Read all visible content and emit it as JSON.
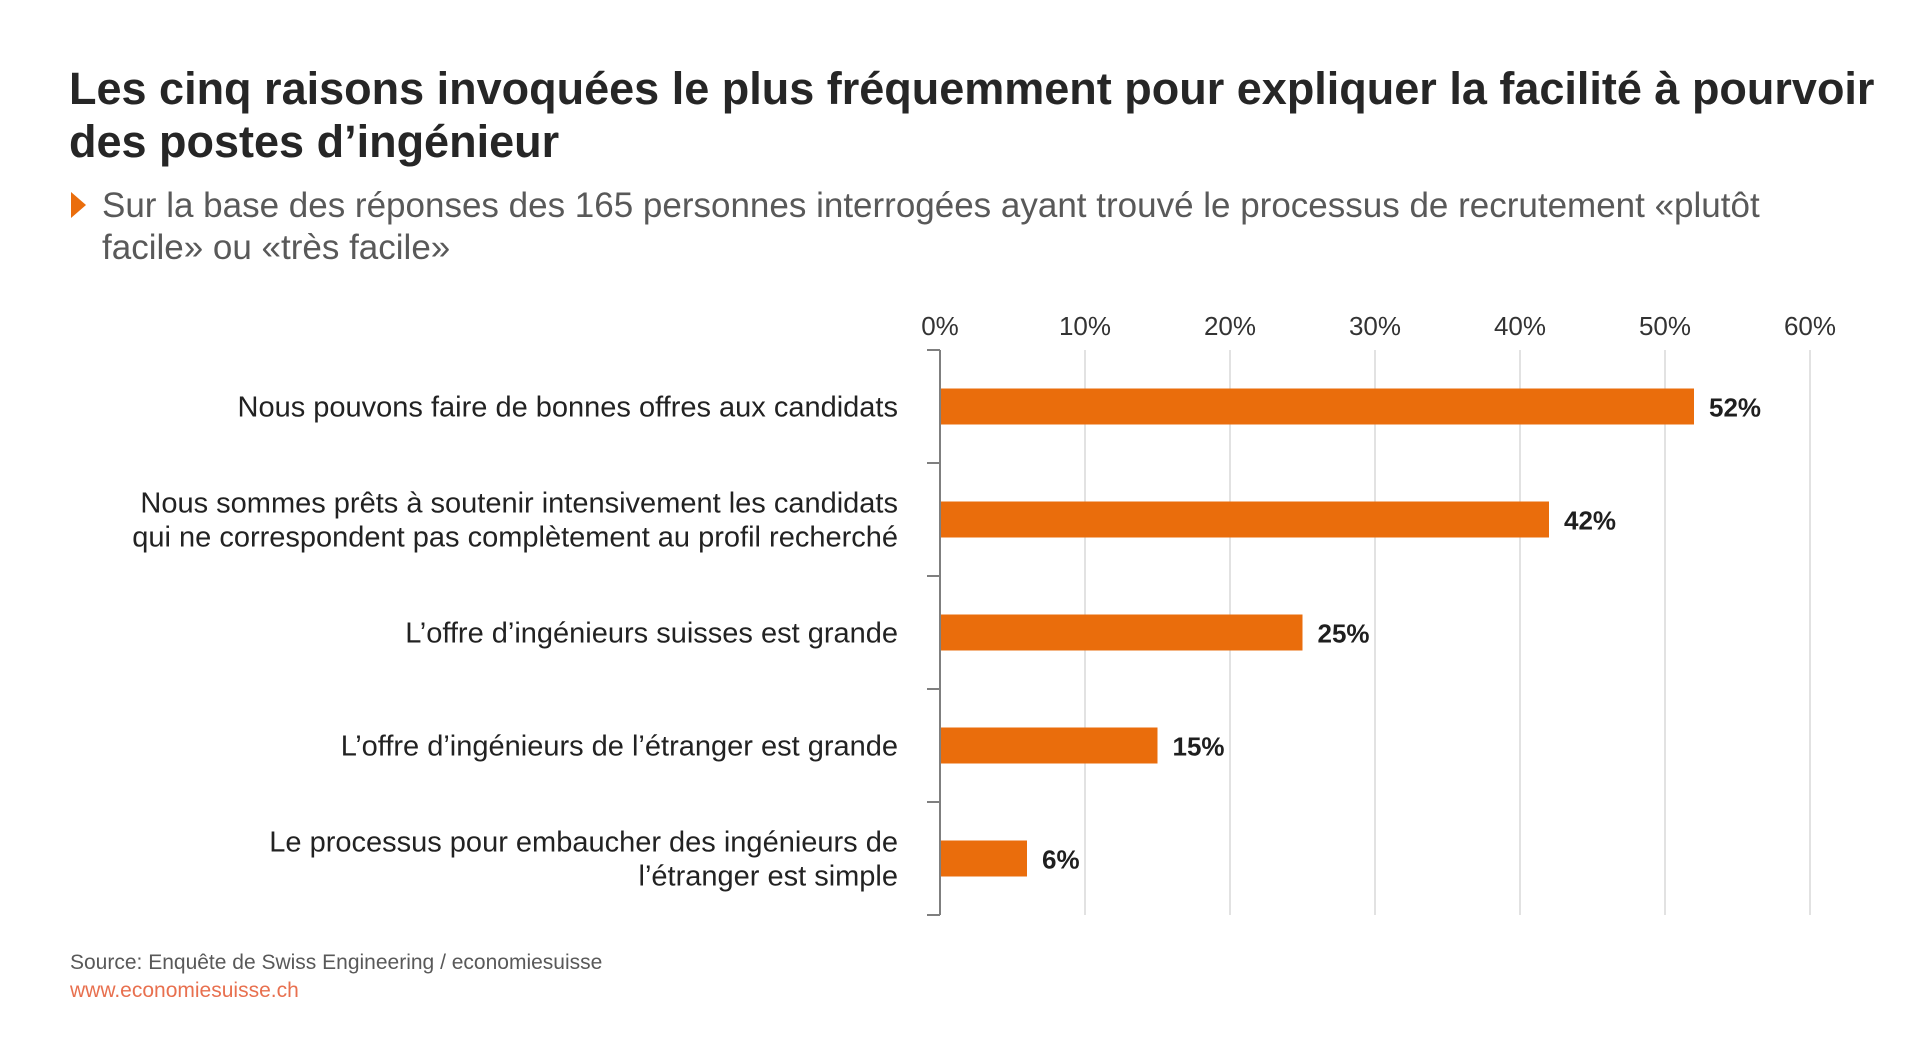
{
  "title": "Les cinq raisons invoquées le plus fréquemment pour expliquer la facilité à pourvoir des postes d’ingénieur",
  "subtitle": "Sur la base des réponses des 165 personnes interrogées ayant trouvé le processus de recrutement «plutôt facile» ou «très facile»",
  "colors": {
    "bar": "#ea6d0c",
    "marker": "#ea6d0c",
    "grid": "#d9d9d9",
    "axis": "#7f7f7f",
    "website": "#e8704f"
  },
  "chart_data": {
    "type": "bar",
    "orientation": "horizontal",
    "categories": [
      [
        "Nous pouvons faire de bonnes offres aux candidats"
      ],
      [
        "Nous sommes prêts à soutenir intensivement les candidats",
        "qui ne correspondent pas complètement au profil recherché"
      ],
      [
        "L’offre d’ingénieurs suisses est grande"
      ],
      [
        "L’offre d’ingénieurs de l’étranger est grande"
      ],
      [
        "Le processus pour embaucher des ingénieurs de",
        "l’étranger est simple"
      ]
    ],
    "values": [
      52,
      42,
      25,
      15,
      6
    ],
    "value_labels": [
      "52%",
      "42%",
      "25%",
      "15%",
      "6%"
    ],
    "xticks": [
      0,
      10,
      20,
      30,
      40,
      50,
      60
    ],
    "xtick_labels": [
      "0%",
      "10%",
      "20%",
      "30%",
      "40%",
      "50%",
      "60%"
    ],
    "xlim": [
      0,
      60
    ],
    "axis_position": "top",
    "grid": true,
    "legend": "none"
  },
  "footer": {
    "source": "Source: Enquête de Swiss Engineering / economiesuisse",
    "website": "www.economiesuisse.ch"
  }
}
